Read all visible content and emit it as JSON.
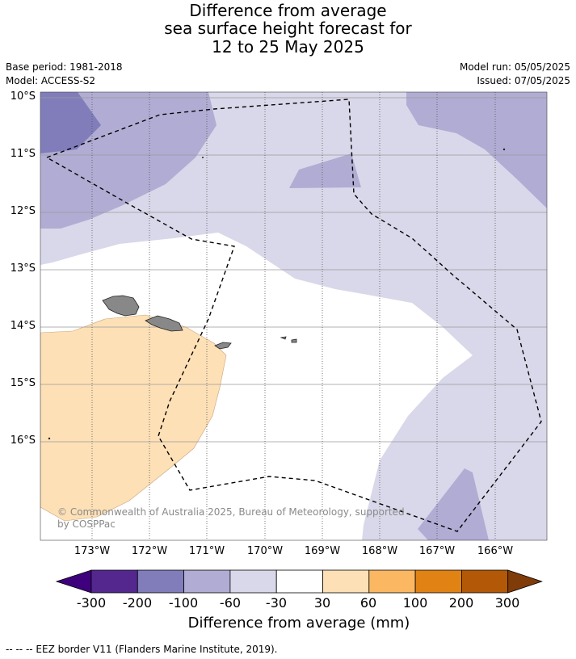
{
  "title_lines": [
    "Difference from average",
    "sea surface height forecast for",
    "12 to 25 May 2025"
  ],
  "base_period": "Base period: 1981-2018",
  "model": "Model: ACCESS-S2",
  "model_run": "Model run: 05/05/2025",
  "issued": "Issued: 07/05/2025",
  "lat_labels": [
    "10°S",
    "11°S",
    "12°S",
    "13°S",
    "14°S",
    "15°S",
    "16°S"
  ],
  "lon_labels": [
    "173°W",
    "172°W",
    "171°W",
    "170°W",
    "169°W",
    "168°W",
    "167°W",
    "166°W"
  ],
  "copyright_lines": [
    "© Commonwealth of Australia 2025, Bureau of Meteorology, supported",
    "by COSPPac"
  ],
  "colorbar": {
    "labels": [
      "-300",
      "-200",
      "-100",
      "-60",
      "-30",
      "30",
      "60",
      "100",
      "200",
      "300"
    ],
    "title": "Difference from average (mm)",
    "colors": [
      "#3f007d",
      "#54278f",
      "#807dba",
      "#b1acd3",
      "#d9d8ea",
      "#ffffff",
      "#fde0b6",
      "#fbb761",
      "#e08214",
      "#b35806",
      "#7f3b08"
    ]
  },
  "footnote": "-- -- -- EEZ border V11 (Flanders Marine Institute, 2019)."
}
